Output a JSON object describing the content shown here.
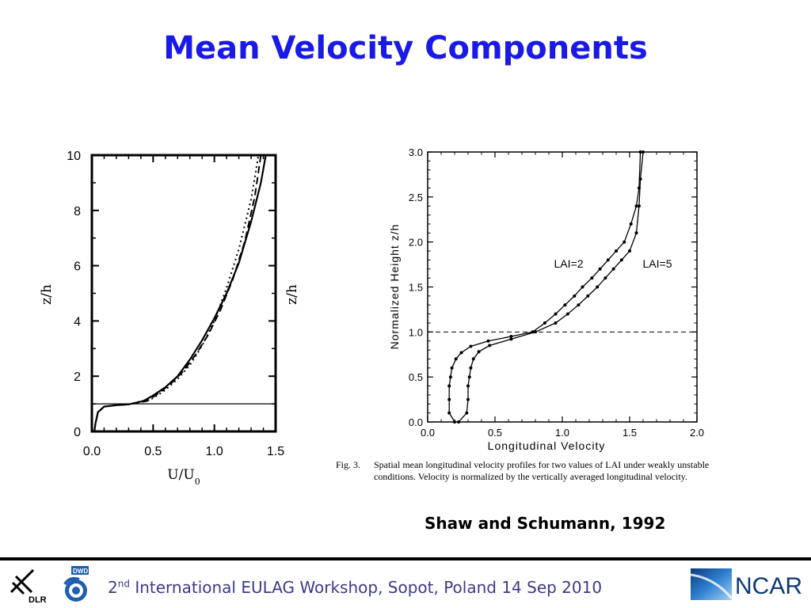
{
  "title": "Mean Velocity Components",
  "citation": "Shaw and Schumann, 1992",
  "footer": {
    "ordinal_num": "2",
    "ordinal_sup": "nd",
    "text": " International EULAG Workshop, Sopot, Poland 14 Sep 2010",
    "logos": {
      "dlr_text": "DLR",
      "dwd_text": "DWD",
      "ncar_text": "NCAR"
    }
  },
  "caption": {
    "label": "Fig. 3.",
    "line1": "Spatial mean longitudinal velocity profiles for two values of LAI under weakly unstable",
    "line2": "conditions. Velocity is normalized by the vertically averaged longitudinal velocity."
  },
  "chart_data": [
    {
      "type": "line",
      "xlabel": "U/U",
      "xlabel_sub": "0",
      "ylabel_left": "z/h",
      "ylabel_right": "z/h",
      "xlim": [
        0,
        1.5
      ],
      "ylim": [
        0,
        10
      ],
      "xticks": [
        "0.0",
        "0.5",
        "1.0",
        "1.5"
      ],
      "yticks": [
        "0",
        "2",
        "4",
        "6",
        "8",
        "10"
      ],
      "reference_line_y": 1,
      "series": [
        {
          "style": "solid",
          "x": [
            0.02,
            0.03,
            0.05,
            0.1,
            0.2,
            0.3,
            0.42,
            0.5,
            0.6,
            0.7,
            0.8,
            0.9,
            1.0,
            1.1,
            1.2,
            1.3,
            1.38,
            1.42
          ],
          "y": [
            0.0,
            0.3,
            0.7,
            0.9,
            0.95,
            0.98,
            1.1,
            1.3,
            1.6,
            2.0,
            2.6,
            3.3,
            4.1,
            5.0,
            6.1,
            7.6,
            9.0,
            10.0
          ]
        },
        {
          "style": "dashed",
          "x": [
            0.02,
            0.03,
            0.05,
            0.1,
            0.2,
            0.3,
            0.45,
            0.55,
            0.65,
            0.75,
            0.85,
            0.95,
            1.05,
            1.15,
            1.25,
            1.33,
            1.38
          ],
          "y": [
            0.0,
            0.3,
            0.7,
            0.9,
            0.95,
            0.98,
            1.1,
            1.4,
            1.75,
            2.2,
            2.8,
            3.5,
            4.4,
            5.5,
            6.9,
            8.5,
            10.0
          ]
        },
        {
          "style": "dotted",
          "x": [
            0.02,
            0.03,
            0.05,
            0.1,
            0.2,
            0.3,
            0.5,
            0.6,
            0.7,
            0.8,
            0.9,
            1.0,
            1.1,
            1.2,
            1.3,
            1.36
          ],
          "y": [
            0.0,
            0.3,
            0.7,
            0.9,
            0.95,
            0.98,
            1.2,
            1.5,
            1.9,
            2.4,
            3.1,
            4.0,
            5.2,
            6.6,
            8.4,
            10.0
          ]
        }
      ]
    },
    {
      "type": "line",
      "xlabel": "Longitudinal Velocity",
      "ylabel": "Normalized Height z/h",
      "xlim": [
        0,
        2.0
      ],
      "ylim": [
        0,
        3.0
      ],
      "xticks": [
        "0.0",
        "0.5",
        "1.0",
        "1.5",
        "2.0"
      ],
      "yticks": [
        "0.0",
        "0.5",
        "1.0",
        "1.5",
        "2.0",
        "2.5",
        "3.0"
      ],
      "reference_line_y": 1.0,
      "annotations": [
        "LAI=2",
        "LAI=5"
      ],
      "series": [
        {
          "label": "LAI=2",
          "x": [
            0.2,
            0.16,
            0.16,
            0.16,
            0.17,
            0.18,
            0.21,
            0.25,
            0.32,
            0.45,
            0.62,
            0.78,
            0.87,
            0.95,
            1.02,
            1.09,
            1.15,
            1.22,
            1.28,
            1.34,
            1.4,
            1.46,
            1.51,
            1.55,
            1.57,
            1.58
          ],
          "y": [
            0.0,
            0.1,
            0.25,
            0.4,
            0.5,
            0.6,
            0.7,
            0.77,
            0.84,
            0.9,
            0.95,
            1.0,
            1.1,
            1.2,
            1.3,
            1.4,
            1.5,
            1.6,
            1.7,
            1.8,
            1.9,
            2.0,
            2.2,
            2.4,
            2.6,
            3.0
          ]
        },
        {
          "label": "LAI=5",
          "x": [
            0.23,
            0.29,
            0.3,
            0.3,
            0.31,
            0.32,
            0.34,
            0.38,
            0.46,
            0.62,
            0.8,
            0.95,
            1.04,
            1.12,
            1.19,
            1.26,
            1.32,
            1.38,
            1.44,
            1.5,
            1.55,
            1.57,
            1.58,
            1.6
          ],
          "y": [
            0.0,
            0.1,
            0.25,
            0.4,
            0.5,
            0.6,
            0.7,
            0.78,
            0.85,
            0.92,
            1.0,
            1.1,
            1.2,
            1.3,
            1.4,
            1.5,
            1.6,
            1.7,
            1.8,
            1.9,
            2.1,
            2.4,
            2.7,
            3.0
          ]
        }
      ]
    }
  ]
}
